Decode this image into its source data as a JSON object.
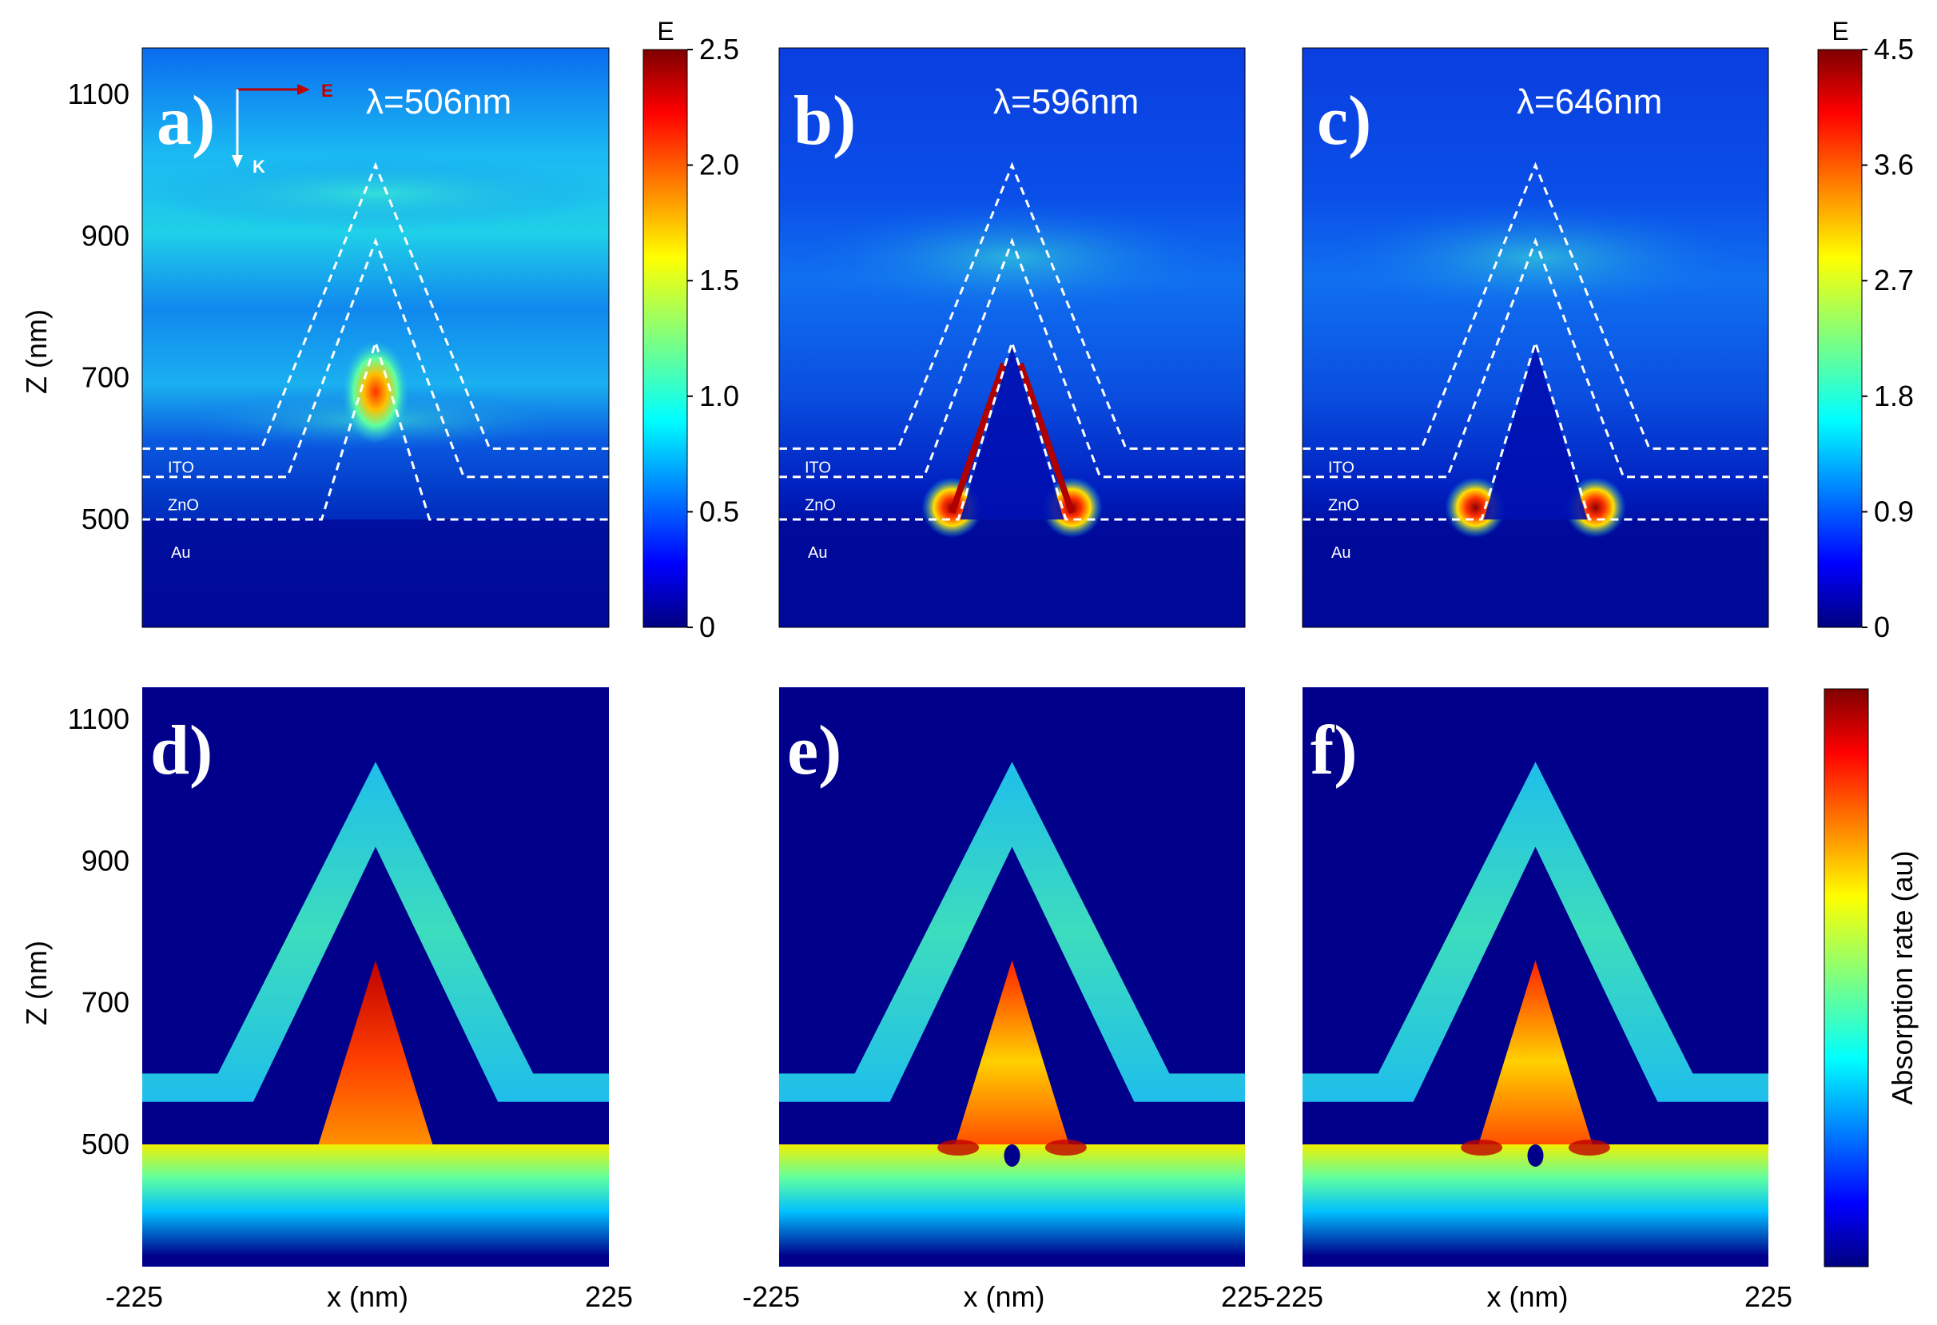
{
  "chart_data": [
    {
      "type": "heatmap",
      "panel": "a)",
      "annotation": "λ=506nm",
      "quantity": "E",
      "x_range": [
        -225,
        225
      ],
      "ylabel": "Z (nm)",
      "y_ticks": [
        500,
        700,
        900,
        1100
      ],
      "layer_labels": [
        "ITO",
        "ZnO",
        "Au"
      ],
      "polarization": {
        "e_label": "E",
        "k_label": "K"
      },
      "colorbar": {
        "title": "E",
        "range": [
          0,
          2.5
        ],
        "ticks": [
          "0",
          "0.5",
          "1.0",
          "1.5",
          "2.0",
          "2.5"
        ]
      }
    },
    {
      "type": "heatmap",
      "panel": "b)",
      "annotation": "λ=596nm",
      "quantity": "E",
      "x_range": [
        -225,
        225
      ],
      "layer_labels": [
        "ITO",
        "ZnO",
        "Au"
      ]
    },
    {
      "type": "heatmap",
      "panel": "c)",
      "annotation": "λ=646nm",
      "quantity": "E",
      "x_range": [
        -225,
        225
      ],
      "layer_labels": [
        "ITO",
        "ZnO",
        "Au"
      ],
      "colorbar": {
        "title": "E",
        "range": [
          0,
          4.5
        ],
        "ticks": [
          "0",
          "0.9",
          "1.8",
          "2.7",
          "3.6",
          "4.5"
        ]
      }
    },
    {
      "type": "heatmap",
      "panel": "d)",
      "quantity": "Absorption rate (au)",
      "xlabel": "x (nm)",
      "x_ticks": [
        "-225",
        "225"
      ],
      "ylabel": "Z (nm)",
      "y_ticks": [
        500,
        700,
        900,
        1100
      ]
    },
    {
      "type": "heatmap",
      "panel": "e)",
      "quantity": "Absorption rate (au)",
      "xlabel": "x (nm)",
      "x_ticks": [
        "-225",
        "225"
      ]
    },
    {
      "type": "heatmap",
      "panel": "f)",
      "quantity": "Absorption rate (au)",
      "xlabel": "x (nm)",
      "x_ticks": [
        "-225",
        "225"
      ],
      "colorbar": {
        "title": "Absorption rate (au)"
      }
    }
  ],
  "colors": {
    "background_field": "#00008b",
    "jet_colormap": [
      "#00007f",
      "#0000ff",
      "#007fff",
      "#00ffff",
      "#7fff7f",
      "#ffff00",
      "#ff7f00",
      "#ff0000",
      "#7f0000"
    ],
    "outline": "#ffffff",
    "e_arrow": "#c00000"
  }
}
